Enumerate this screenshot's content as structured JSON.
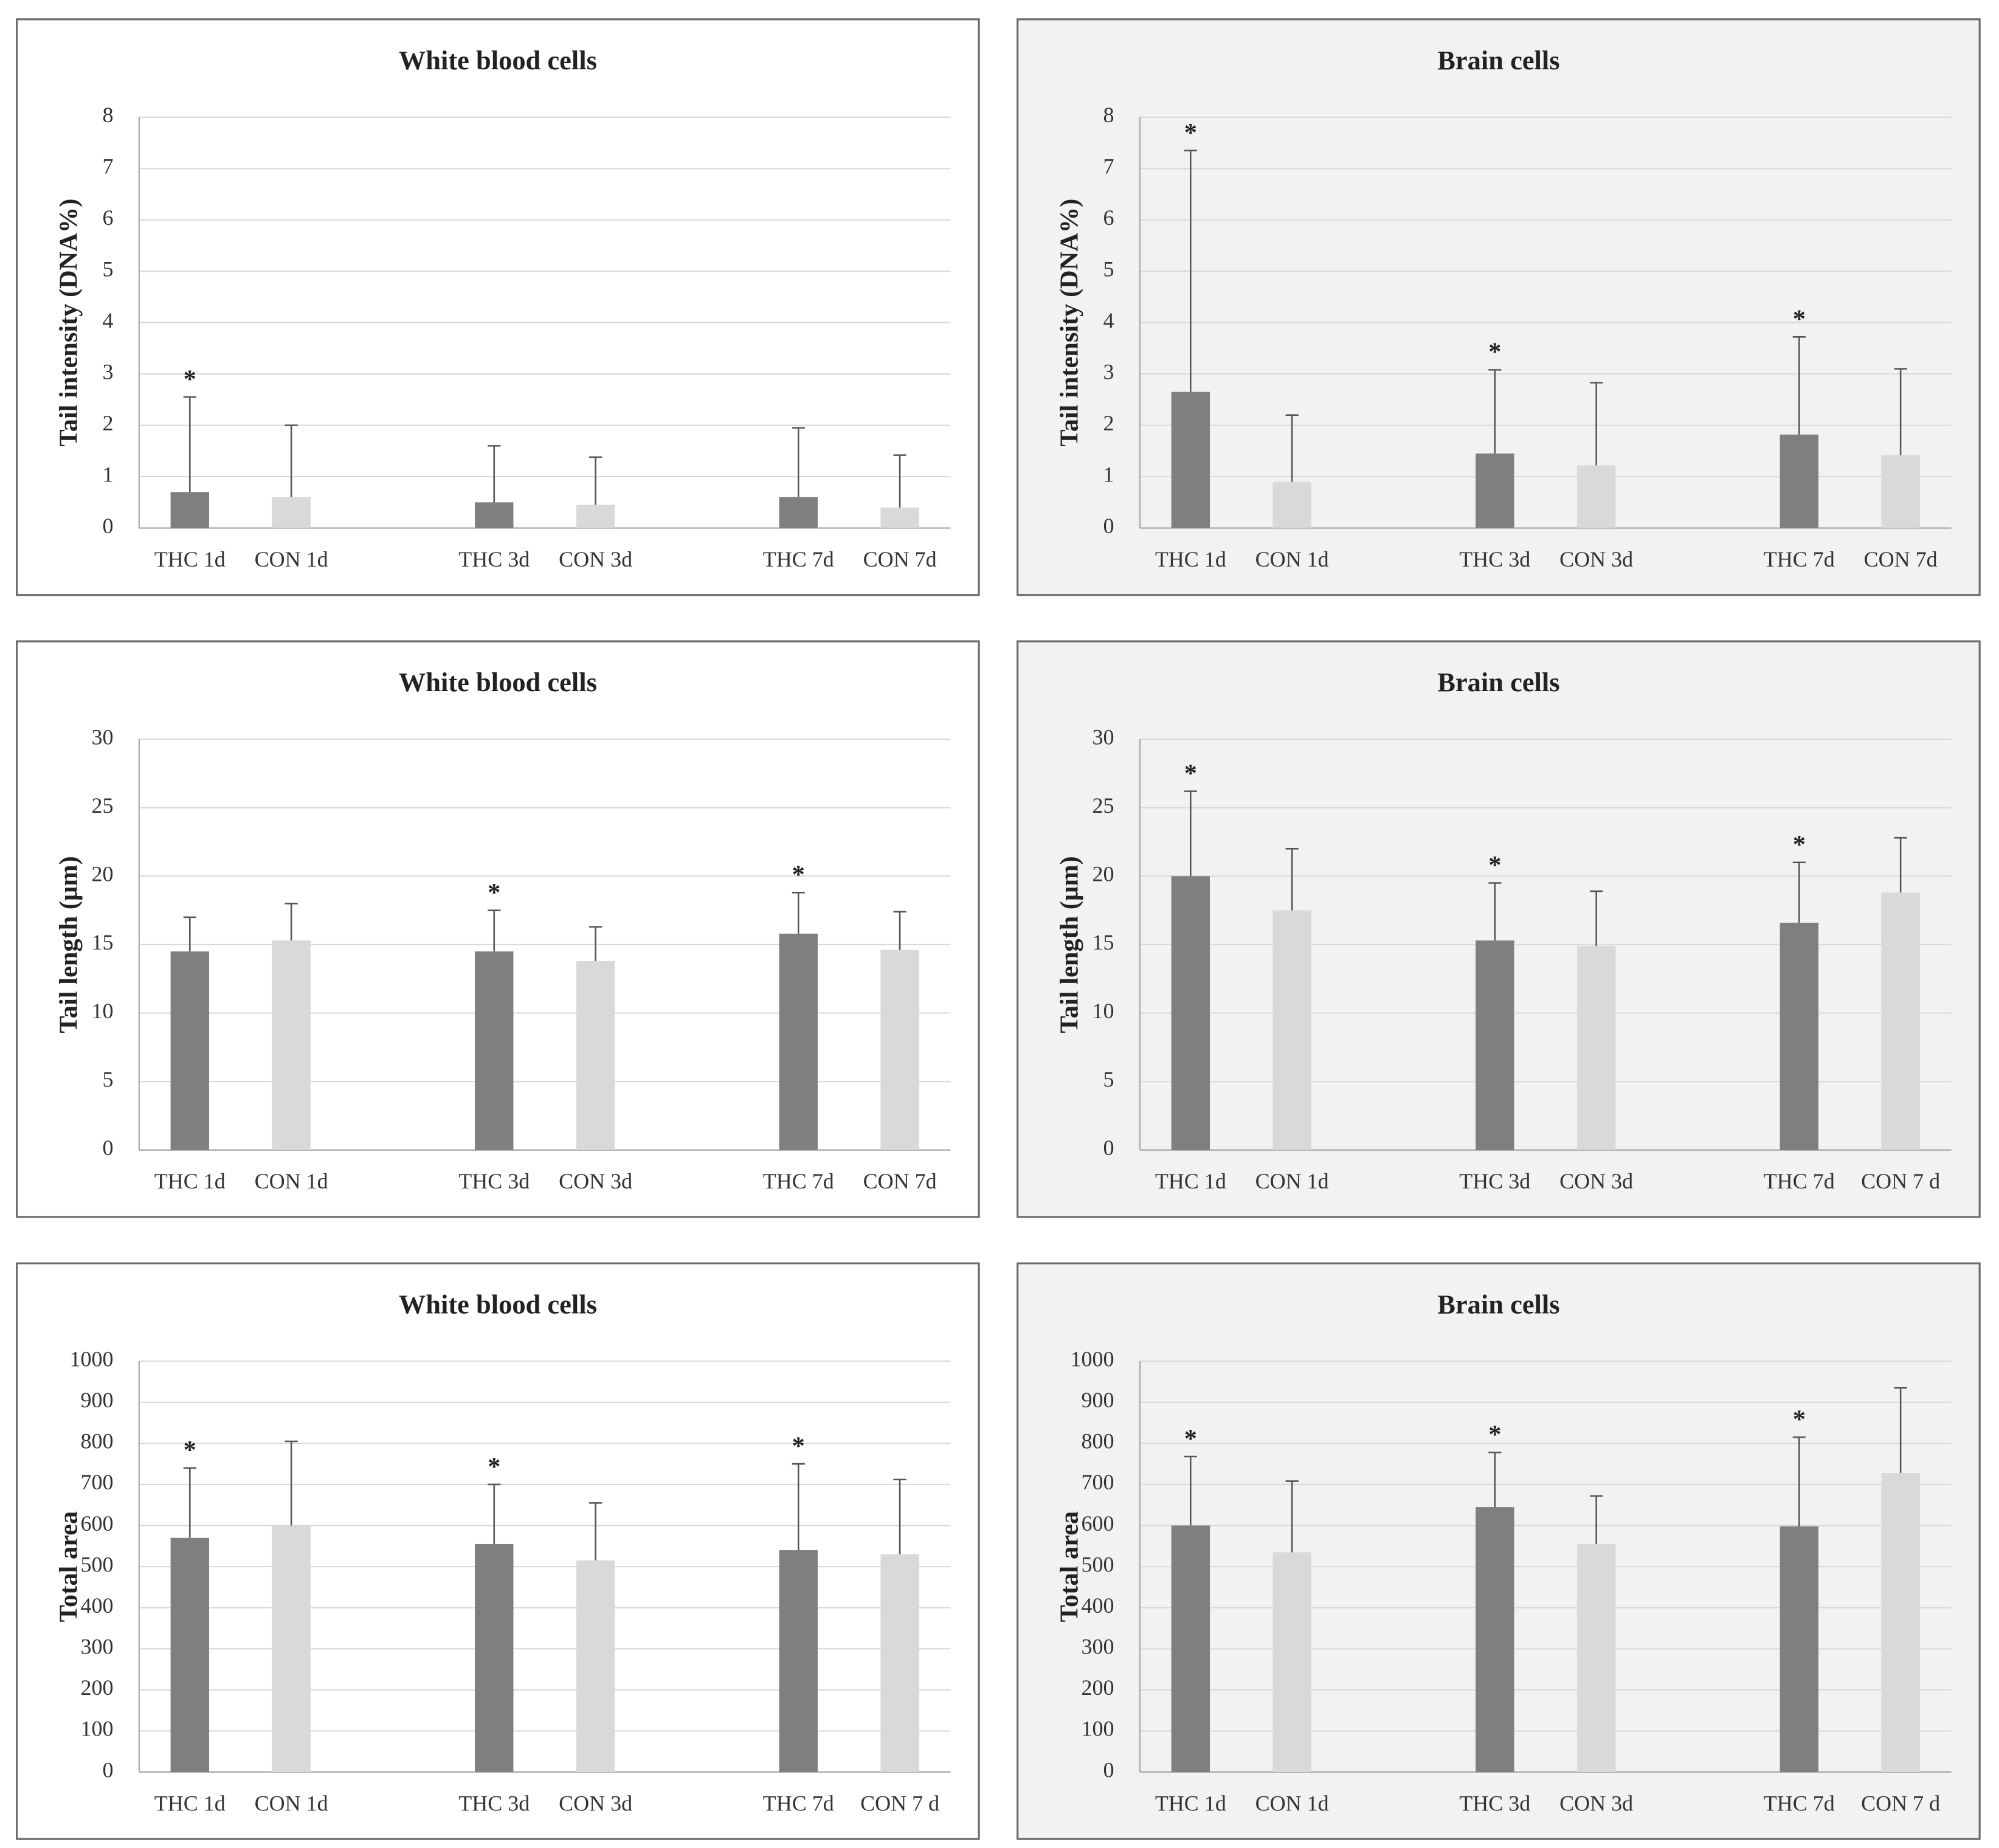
{
  "chart_data": [
    {
      "type": "bar",
      "title": "White blood cells",
      "y_label": "Tail intensity (DNA%)",
      "background": "#ffffff",
      "categories": [
        "THC 1d",
        "CON 1d",
        null,
        "THC 3d",
        "CON 3d",
        null,
        "THC 7d",
        "CON 7d"
      ],
      "values": [
        0.7,
        0.6,
        null,
        0.5,
        0.45,
        null,
        0.6,
        0.4
      ],
      "errors": [
        1.85,
        1.4,
        null,
        1.1,
        0.93,
        null,
        1.35,
        1.02
      ],
      "significance": [
        "*",
        null,
        null,
        null,
        null,
        null,
        null,
        null
      ],
      "colors": [
        "#7f7f7f",
        "#d9d9d9",
        null,
        "#7f7f7f",
        "#d9d9d9",
        null,
        "#7f7f7f",
        "#d9d9d9"
      ],
      "ylim": [
        0,
        8
      ],
      "yticks": [
        0,
        1,
        2,
        3,
        4,
        5,
        6,
        7,
        8
      ],
      "grid": true
    },
    {
      "type": "bar",
      "title": "Brain cells",
      "y_label": "Tail intensity (DNA%)",
      "background": "#f2f2f2",
      "categories": [
        "THC 1d",
        "CON 1d",
        null,
        "THC 3d",
        "CON 3d",
        null,
        "THC 7d",
        "CON 7d"
      ],
      "values": [
        2.65,
        0.9,
        null,
        1.45,
        1.22,
        null,
        1.82,
        1.42
      ],
      "errors": [
        4.7,
        1.3,
        null,
        1.63,
        1.61,
        null,
        1.9,
        1.68
      ],
      "significance": [
        "*",
        null,
        null,
        "*",
        null,
        null,
        "*",
        null
      ],
      "colors": [
        "#7f7f7f",
        "#d9d9d9",
        null,
        "#7f7f7f",
        "#d9d9d9",
        null,
        "#7f7f7f",
        "#d9d9d9"
      ],
      "ylim": [
        0,
        8
      ],
      "yticks": [
        0,
        1,
        2,
        3,
        4,
        5,
        6,
        7,
        8
      ],
      "grid": true
    },
    {
      "type": "bar",
      "title": "White blood cells",
      "y_label": "Tail length (µm)",
      "background": "#ffffff",
      "categories": [
        "THC 1d",
        "CON 1d",
        null,
        "THC 3d",
        "CON 3d",
        null,
        "THC 7d",
        "CON 7d"
      ],
      "values": [
        14.5,
        15.3,
        null,
        14.5,
        13.8,
        null,
        15.8,
        14.6
      ],
      "errors": [
        2.5,
        2.7,
        null,
        3,
        2.5,
        null,
        3,
        2.8
      ],
      "significance": [
        null,
        null,
        null,
        "*",
        null,
        null,
        "*",
        null
      ],
      "colors": [
        "#7f7f7f",
        "#d9d9d9",
        null,
        "#7f7f7f",
        "#d9d9d9",
        null,
        "#7f7f7f",
        "#d9d9d9"
      ],
      "ylim": [
        0,
        30
      ],
      "yticks": [
        0,
        5,
        10,
        15,
        20,
        25,
        30
      ],
      "grid": true
    },
    {
      "type": "bar",
      "title": "Brain cells",
      "y_label": "Tail length (µm)",
      "background": "#f2f2f2",
      "categories": [
        "THC 1d",
        "CON 1d",
        null,
        "THC 3d",
        "CON 3d",
        null,
        "THC 7d",
        "CON 7 d"
      ],
      "values": [
        20,
        17.5,
        null,
        15.3,
        14.9,
        null,
        16.6,
        18.8
      ],
      "errors": [
        6.2,
        4.5,
        null,
        4.2,
        4,
        null,
        4.4,
        4
      ],
      "significance": [
        "*",
        null,
        null,
        "*",
        null,
        null,
        "*",
        null
      ],
      "colors": [
        "#7f7f7f",
        "#d9d9d9",
        null,
        "#7f7f7f",
        "#d9d9d9",
        null,
        "#7f7f7f",
        "#d9d9d9"
      ],
      "ylim": [
        0,
        30
      ],
      "yticks": [
        0,
        5,
        10,
        15,
        20,
        25,
        30
      ],
      "grid": true
    },
    {
      "type": "bar",
      "title": "White blood cells",
      "y_label": "Total area",
      "background": "#ffffff",
      "categories": [
        "THC 1d",
        "CON 1d",
        null,
        "THC 3d",
        "CON 3d",
        null,
        "THC 7d",
        "CON 7 d"
      ],
      "values": [
        570,
        600,
        null,
        555,
        515,
        null,
        540,
        530
      ],
      "errors": [
        170,
        205,
        null,
        145,
        140,
        null,
        210,
        182
      ],
      "significance": [
        "*",
        null,
        null,
        "*",
        null,
        null,
        "*",
        null
      ],
      "colors": [
        "#7f7f7f",
        "#d9d9d9",
        null,
        "#7f7f7f",
        "#d9d9d9",
        null,
        "#7f7f7f",
        "#d9d9d9"
      ],
      "ylim": [
        0,
        1000
      ],
      "yticks": [
        0,
        100,
        200,
        300,
        400,
        500,
        600,
        700,
        800,
        900,
        1000
      ],
      "grid": true
    },
    {
      "type": "bar",
      "title": "Brain cells",
      "y_label": "Total area",
      "background": "#f2f2f2",
      "categories": [
        "THC 1d",
        "CON 1d",
        null,
        "THC 3d",
        "CON 3d",
        null,
        "THC 7d",
        "CON 7 d"
      ],
      "values": [
        600,
        535,
        null,
        645,
        555,
        null,
        598,
        728
      ],
      "errors": [
        168,
        173,
        null,
        133,
        117,
        null,
        217,
        207
      ],
      "significance": [
        "*",
        null,
        null,
        "*",
        null,
        null,
        "*",
        null
      ],
      "colors": [
        "#7f7f7f",
        "#d9d9d9",
        null,
        "#7f7f7f",
        "#d9d9d9",
        null,
        "#7f7f7f",
        "#d9d9d9"
      ],
      "ylim": [
        0,
        1000
      ],
      "yticks": [
        0,
        100,
        200,
        300,
        400,
        500,
        600,
        700,
        800,
        900,
        1000
      ],
      "grid": true
    }
  ]
}
